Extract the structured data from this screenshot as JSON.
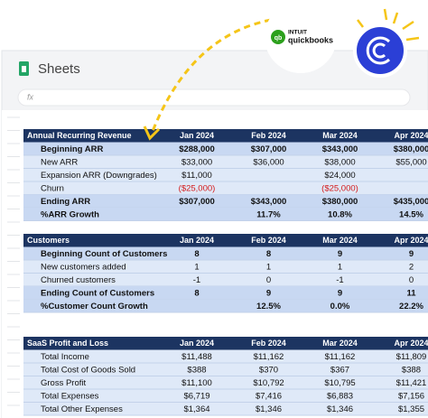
{
  "app": {
    "name": "Sheets",
    "formula_icon": "fx"
  },
  "logo": {
    "brand": "INTUIT",
    "product": "quickbooks",
    "mark": "qb"
  },
  "tables": [
    {
      "headers": [
        "Annual Recurring Revenue",
        "Jan 2024",
        "Feb 2024",
        "Mar 2024",
        "Apr 2024"
      ],
      "rows": [
        {
          "bold": true,
          "cells": [
            "Beginning ARR",
            "$288,000",
            "$307,000",
            "$343,000",
            "$380,000"
          ]
        },
        {
          "bold": false,
          "cells": [
            "New ARR",
            "$33,000",
            "$36,000",
            "$38,000",
            "$55,000"
          ]
        },
        {
          "bold": false,
          "cells": [
            "Expansion ARR (Downgrades)",
            "$11,000",
            null,
            "$24,000",
            null
          ]
        },
        {
          "bold": false,
          "cells": [
            "Churn",
            "($25,000)",
            null,
            "($25,000)",
            null
          ]
        },
        {
          "bold": true,
          "cells": [
            "Ending ARR",
            "$307,000",
            "$343,000",
            "$380,000",
            "$435,000"
          ]
        },
        {
          "bold": true,
          "cells": [
            "%ARR Growth",
            null,
            "11.7%",
            "10.8%",
            "14.5%"
          ]
        }
      ]
    },
    {
      "headers": [
        "Customers",
        "Jan 2024",
        "Feb 2024",
        "Mar 2024",
        "Apr 2024"
      ],
      "rows": [
        {
          "bold": true,
          "cells": [
            "Beginning Count of Customers",
            "8",
            "8",
            "9",
            "9"
          ]
        },
        {
          "bold": false,
          "cells": [
            "New customers added",
            "1",
            "1",
            "1",
            "2"
          ]
        },
        {
          "bold": false,
          "cells": [
            "Churned customers",
            "-1",
            "0",
            "-1",
            "0"
          ]
        },
        {
          "bold": true,
          "cells": [
            "Ending Count of Customers",
            "8",
            "9",
            "9",
            "11"
          ]
        },
        {
          "bold": true,
          "cells": [
            "%Customer Count Growth",
            null,
            "12.5%",
            "0.0%",
            "22.2%"
          ]
        }
      ]
    },
    {
      "headers": [
        "SaaS Profit and Loss",
        "Jan 2024",
        "Feb 2024",
        "Mar 2024",
        "Apr 2024"
      ],
      "rows": [
        {
          "bold": false,
          "cells": [
            "Total Income",
            "$11,488",
            "$11,162",
            "$11,162",
            "$11,809"
          ]
        },
        {
          "bold": false,
          "cells": [
            "Total Cost of Goods Sold",
            "$388",
            "$370",
            "$367",
            "$388"
          ]
        },
        {
          "bold": false,
          "cells": [
            "Gross Profit",
            "$11,100",
            "$10,792",
            "$10,795",
            "$11,421"
          ]
        },
        {
          "bold": false,
          "cells": [
            "Total Expenses",
            "$6,719",
            "$7,416",
            "$6,883",
            "$7,156"
          ]
        },
        {
          "bold": false,
          "cells": [
            "Total Other Expenses",
            "$1,364",
            "$1,346",
            "$1,346",
            "$1,355"
          ]
        }
      ]
    }
  ]
}
